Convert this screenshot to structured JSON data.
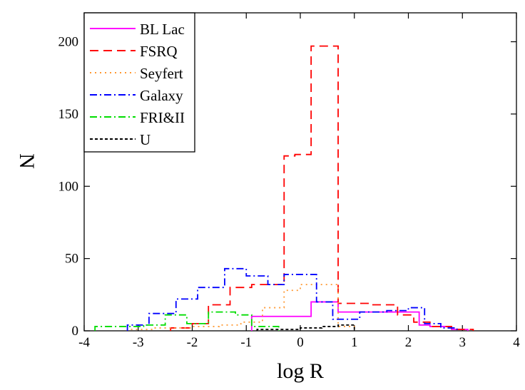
{
  "chart_data": {
    "type": "line",
    "style": "step-histogram",
    "xlabel": "log R",
    "ylabel": "N",
    "xlim": [
      -4,
      4
    ],
    "ylim": [
      0,
      220
    ],
    "x_ticks": [
      -4,
      -3,
      -2,
      -1,
      0,
      1,
      2,
      3,
      4
    ],
    "y_ticks": [
      0,
      50,
      100,
      150,
      200
    ],
    "legend_position": "top-left",
    "bin_edges": [
      -3.7,
      -3.2,
      -2.8,
      -2.4,
      -2.0,
      -1.6,
      -1.2,
      -0.8,
      -0.4,
      0.0,
      0.4,
      0.8,
      1.2,
      1.6,
      2.0,
      2.4,
      2.8,
      3.2
    ],
    "series": [
      {
        "name": "BL Lac",
        "color": "#ff00ff",
        "dash": "solid",
        "edges": [
          -0.9,
          0.2,
          0.7,
          1.4,
          2.2,
          2.4,
          2.8,
          3.1
        ],
        "values": [
          10,
          20,
          13,
          13,
          4,
          3,
          1
        ]
      },
      {
        "name": "FSRQ",
        "color": "#ff0000",
        "dash": "long-dash",
        "edges": [
          -2.4,
          -2.0,
          -1.7,
          -1.3,
          -0.9,
          -0.3,
          -0.1,
          0.2,
          0.7,
          1.3,
          1.8,
          2.1,
          2.4,
          2.8,
          3.2
        ],
        "values": [
          2,
          5,
          18,
          30,
          32,
          121,
          122,
          197,
          19,
          18,
          11,
          6,
          3,
          1
        ]
      },
      {
        "name": "Seyfert",
        "color": "#ff9933",
        "dash": "dotted",
        "edges": [
          -3.2,
          -2.7,
          -2.0,
          -1.5,
          -1.1,
          -0.7,
          -0.3,
          0.0,
          0.7,
          1.0
        ],
        "values": [
          1,
          2,
          3,
          4,
          6,
          16,
          28,
          32,
          3
        ]
      },
      {
        "name": "Galaxy",
        "color": "#0000ff",
        "dash": "dash-dot",
        "edges": [
          -3.2,
          -2.8,
          -2.3,
          -1.9,
          -1.4,
          -1.0,
          -0.6,
          -0.3,
          0.3,
          0.6,
          1.1,
          1.6,
          2.0,
          2.3,
          2.6,
          2.9
        ],
        "values": [
          4,
          12,
          22,
          30,
          43,
          38,
          32,
          39,
          20,
          8,
          13,
          14,
          16,
          5,
          2
        ]
      },
      {
        "name": "FRI&II",
        "color": "#00dd00",
        "dash": "dash-dot",
        "edges": [
          -3.8,
          -2.9,
          -2.5,
          -2.1,
          -1.7,
          -1.2,
          -0.9,
          -0.4
        ],
        "values": [
          3,
          4,
          11,
          5,
          13,
          11,
          3
        ]
      },
      {
        "name": "U",
        "color": "#000000",
        "dash": "short-dash",
        "edges": [
          -0.8,
          -0.4,
          0.0,
          0.4,
          0.7,
          1.0
        ],
        "values": [
          1,
          1,
          2,
          3,
          4
        ]
      }
    ]
  }
}
